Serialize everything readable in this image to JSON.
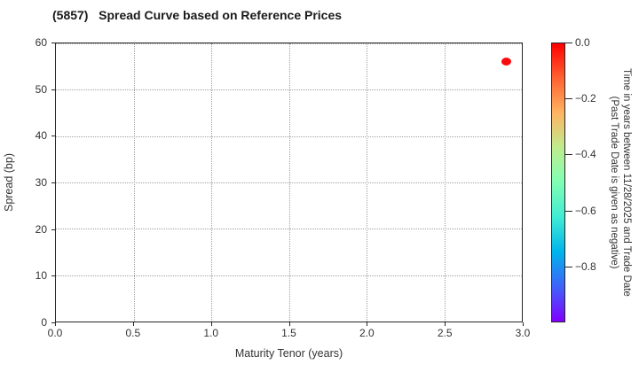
{
  "chart_data": {
    "type": "scatter",
    "title": "(5857)   Spread Curve based on Reference Prices",
    "xlabel": "Maturity Tenor (years)",
    "ylabel": "Spread (bp)",
    "xlim": [
      0.0,
      3.0
    ],
    "ylim": [
      0,
      60
    ],
    "x_ticks": [
      0.0,
      0.5,
      1.0,
      1.5,
      2.0,
      2.5,
      3.0
    ],
    "x_tick_labels": [
      "0.0",
      "0.5",
      "1.0",
      "1.5",
      "2.0",
      "2.5",
      "3.0"
    ],
    "y_ticks": [
      0,
      10,
      20,
      30,
      40,
      50,
      60
    ],
    "y_tick_labels": [
      "0",
      "10",
      "20",
      "30",
      "40",
      "50",
      "60"
    ],
    "grid": {
      "visible": true,
      "style": "dotted",
      "color": "#a0a0a0"
    },
    "series": [
      {
        "name": "trades",
        "marker": "circle",
        "points": [
          {
            "x": 2.89,
            "y": 56.2,
            "time_value": 0.0,
            "color": "#f90a0e"
          }
        ]
      }
    ],
    "colorbar": {
      "label_line1": "Time in years between 11/28/2025 and Trade Date",
      "label_line2": "(Past Trade Date is given as negative)",
      "colormap": "rainbow",
      "vmax": 0.0,
      "vmin": -1.0,
      "tick_values": [
        0.0,
        -0.2,
        -0.4,
        -0.6,
        -0.8
      ],
      "tick_labels": [
        "0.0",
        "−0.2",
        "−0.4",
        "−0.6",
        "−0.8"
      ],
      "gradient_stops": [
        {
          "pos": 0,
          "color": "#ff0000"
        },
        {
          "pos": 12.5,
          "color": "#ff6232"
        },
        {
          "pos": 25,
          "color": "#ffb462"
        },
        {
          "pos": 37.5,
          "color": "#bfec8e"
        },
        {
          "pos": 50,
          "color": "#80ffb4"
        },
        {
          "pos": 62.5,
          "color": "#40ecd4"
        },
        {
          "pos": 75,
          "color": "#00b4ec"
        },
        {
          "pos": 87.5,
          "color": "#4062fa"
        },
        {
          "pos": 100,
          "color": "#8000ff"
        }
      ]
    }
  },
  "colors": {
    "background": "#ffffff",
    "axis": "#262626",
    "text": "#333333",
    "grid": "#a0a0a0"
  }
}
